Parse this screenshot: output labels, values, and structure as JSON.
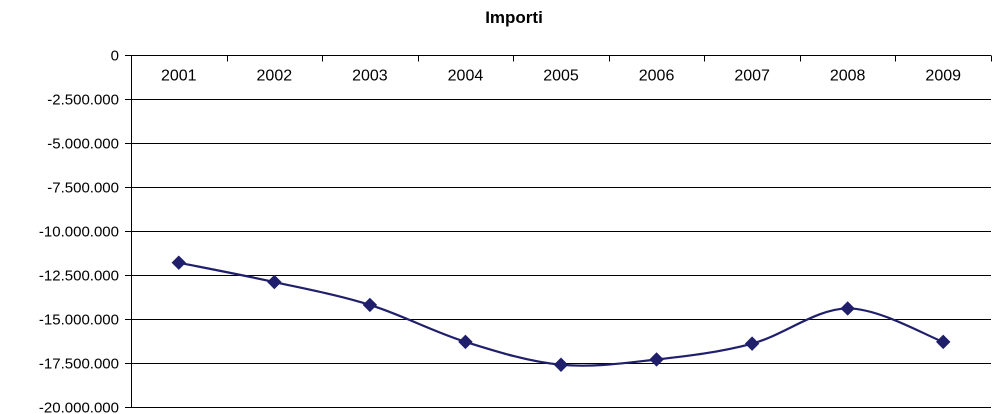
{
  "chart_data": {
    "type": "line",
    "title": "Importi",
    "xlabel": "",
    "ylabel": "",
    "categories": [
      "2001",
      "2002",
      "2003",
      "2004",
      "2005",
      "2006",
      "2007",
      "2008",
      "2009"
    ],
    "series": [
      {
        "values": [
          -11800000,
          -12900000,
          -14200000,
          -16300000,
          -17600000,
          -17300000,
          -16400000,
          -14400000,
          -16300000
        ],
        "color": "#1f1f6b",
        "marker": "diamond",
        "smooth": true
      }
    ],
    "ylim": [
      -20000000,
      0
    ],
    "yticks": [
      0,
      -2500000,
      -5000000,
      -7500000,
      -10000000,
      -12500000,
      -15000000,
      -17500000,
      -20000000
    ],
    "ytick_labels": [
      "0",
      "-2.500.000",
      "-5.000.000",
      "-7.500.000",
      "-10.000.000",
      "-12.500.000",
      "-15.000.000",
      "-17.500.000",
      "-20.000.000"
    ],
    "grid": true,
    "legend": "none",
    "category_axis_position": "top"
  }
}
